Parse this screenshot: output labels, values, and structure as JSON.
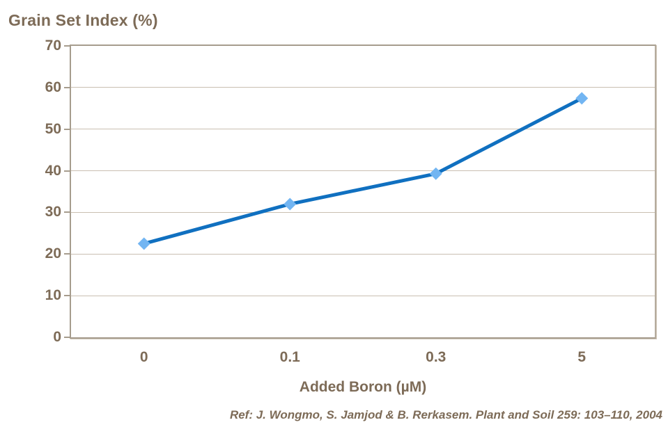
{
  "chart_data": {
    "type": "line",
    "title": "Grain Set Index (%)",
    "xlabel": "Added Boron (µM)",
    "ylabel": "Grain Set Index (%)",
    "categories": [
      "0",
      "0.1",
      "0.3",
      "5"
    ],
    "series": [
      {
        "name": "Grain Set Index",
        "values": [
          22.5,
          32,
          39.3,
          57.4
        ]
      }
    ],
    "ylim": [
      0,
      70
    ],
    "ytick_step": 10,
    "yticks": [
      0,
      10,
      20,
      30,
      40,
      50,
      60,
      70
    ],
    "grid": true,
    "legend_position": "none",
    "marker_shape": "diamond"
  },
  "footer": {
    "reference": "Ref: J. Wongmo, S. Jamjod & B. Rerkasem. Plant and Soil 259: 103–110, 2004"
  },
  "colors": {
    "text": "#7D6B57",
    "grid": "#C9BFB1",
    "axis": "#A69C8D",
    "line": "#1070C0",
    "marker": "#72B5F2",
    "background": "#FFFFFF"
  }
}
